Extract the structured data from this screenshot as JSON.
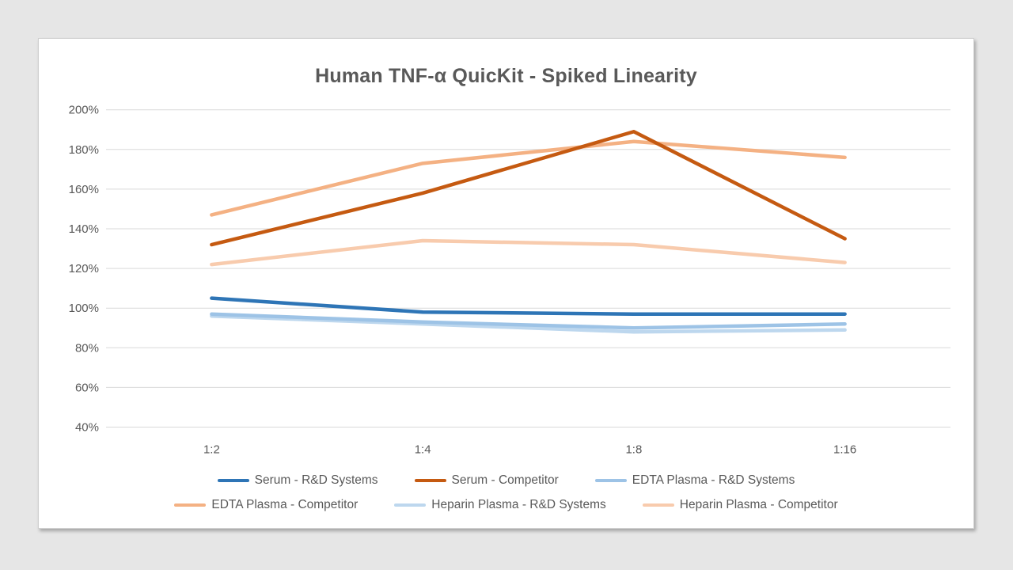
{
  "chart": {
    "title": "Human TNF-α QuicKit - Spiked Linearity"
  },
  "colors": {
    "background": "#e6e6e6",
    "card": "#ffffff",
    "gridline": "#d9d9d9",
    "text": "#595959",
    "serum_rd": "#2E75B6",
    "serum_competitor": "#C55A11",
    "edta_rd": "#9DC3E6",
    "edta_competitor": "#F4B183",
    "heparin_rd": "#BDD7EE",
    "heparin_competitor": "#F8CBAD"
  },
  "chart_data": {
    "type": "line",
    "title": "Human TNF-α QuicKit - Spiked Linearity",
    "categories": [
      "1:2",
      "1:4",
      "1:8",
      "1:16"
    ],
    "series": [
      {
        "name": "Serum - R&D Systems",
        "color": "#2E75B6",
        "values": [
          105,
          98,
          97,
          97
        ]
      },
      {
        "name": "Serum - Competitor",
        "color": "#C55A11",
        "values": [
          132,
          158,
          189,
          135
        ]
      },
      {
        "name": "EDTA Plasma - R&D Systems",
        "color": "#9DC3E6",
        "values": [
          97,
          93,
          90,
          92
        ]
      },
      {
        "name": "EDTA Plasma - Competitor",
        "color": "#F4B183",
        "values": [
          147,
          173,
          184,
          176
        ]
      },
      {
        "name": "Heparin Plasma - R&D Systems",
        "color": "#BDD7EE",
        "values": [
          96,
          92,
          88,
          89
        ]
      },
      {
        "name": "Heparin Plasma - Competitor",
        "color": "#F8CBAD",
        "values": [
          122,
          134,
          132,
          123
        ]
      }
    ],
    "xlabel": "",
    "ylabel": "",
    "ylim": [
      40,
      200
    ],
    "y_tick_step": 20,
    "y_tick_labels": [
      "200%",
      "180%",
      "160%",
      "140%",
      "120%",
      "100%",
      "80%",
      "60%",
      "40%"
    ],
    "grid": true,
    "legend_position": "bottom",
    "legend_rows": [
      [
        0,
        1,
        2
      ],
      [
        3,
        4,
        5
      ]
    ]
  }
}
